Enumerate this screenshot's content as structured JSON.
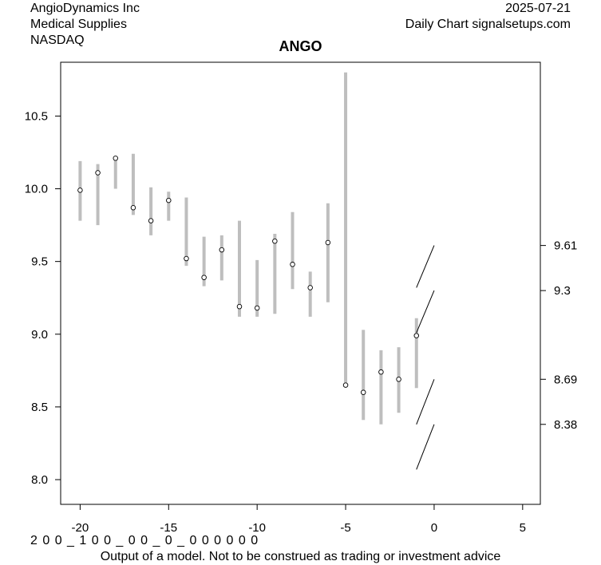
{
  "header": {
    "company": "AngioDynamics Inc",
    "sector": "Medical Supplies",
    "exchange": "NASDAQ",
    "date": "2025-07-21",
    "source": "Daily Chart signalsetups.com"
  },
  "footer": {
    "code": "2 0 0 _ 1 0 0 _ 0 0 _ 0 _ 0 0 0 0 0 0",
    "disclaimer": "Output of a model. Not to be construed as trading or investment advice"
  },
  "chart_data": {
    "type": "range",
    "title": "ANGO",
    "xlim": [
      -21.1,
      6.0
    ],
    "ylim": [
      7.83,
      10.87
    ],
    "x_ticks": [
      -20,
      -15,
      -10,
      -5,
      0,
      5
    ],
    "y_ticks": [
      8.0,
      8.5,
      9.0,
      9.5,
      10.0,
      10.5
    ],
    "y_tick_labels": [
      "8.0",
      "8.5",
      "9.0",
      "9.5",
      "10.0",
      "10.5"
    ],
    "bar_color": "#bebebe",
    "bars": [
      {
        "x": -20,
        "low": 9.78,
        "high": 10.19,
        "close": 9.99
      },
      {
        "x": -19,
        "low": 9.75,
        "high": 10.17,
        "close": 10.11
      },
      {
        "x": -18,
        "low": 10.0,
        "high": 10.22,
        "close": 10.21
      },
      {
        "x": -17,
        "low": 9.82,
        "high": 10.24,
        "close": 9.87
      },
      {
        "x": -16,
        "low": 9.68,
        "high": 10.01,
        "close": 9.78
      },
      {
        "x": -15,
        "low": 9.78,
        "high": 9.98,
        "close": 9.92
      },
      {
        "x": -14,
        "low": 9.47,
        "high": 9.94,
        "close": 9.52
      },
      {
        "x": -13,
        "low": 9.33,
        "high": 9.67,
        "close": 9.39
      },
      {
        "x": -12,
        "low": 9.37,
        "high": 9.68,
        "close": 9.58
      },
      {
        "x": -11,
        "low": 9.12,
        "high": 9.78,
        "close": 9.19
      },
      {
        "x": -10,
        "low": 9.12,
        "high": 9.51,
        "close": 9.18
      },
      {
        "x": -9,
        "low": 9.14,
        "high": 9.69,
        "close": 9.64
      },
      {
        "x": -8,
        "low": 9.31,
        "high": 9.84,
        "close": 9.48
      },
      {
        "x": -7,
        "low": 9.12,
        "high": 9.43,
        "close": 9.32
      },
      {
        "x": -6,
        "low": 9.22,
        "high": 9.9,
        "close": 9.63
      },
      {
        "x": -5,
        "low": 8.64,
        "high": 10.8,
        "close": 8.65
      },
      {
        "x": -4,
        "low": 8.41,
        "high": 9.03,
        "close": 8.6
      },
      {
        "x": -3,
        "low": 8.38,
        "high": 8.89,
        "close": 8.74
      },
      {
        "x": -2,
        "low": 8.46,
        "high": 8.91,
        "close": 8.69
      },
      {
        "x": -1,
        "low": 8.63,
        "high": 9.11,
        "close": 8.99
      }
    ],
    "projection_lines": [
      {
        "x1": -1,
        "y1": 9.32,
        "x2": 0,
        "y2": 9.61
      },
      {
        "x1": -1,
        "y1": 9.01,
        "x2": 0,
        "y2": 9.3
      },
      {
        "x1": -1,
        "y1": 8.38,
        "x2": 0,
        "y2": 8.69
      },
      {
        "x1": -1,
        "y1": 8.07,
        "x2": 0,
        "y2": 8.38
      }
    ],
    "right_labels": [
      {
        "value": 9.61,
        "label": "9.61"
      },
      {
        "value": 9.3,
        "label": "9.3"
      },
      {
        "value": 8.69,
        "label": "8.69"
      },
      {
        "value": 8.38,
        "label": "8.38"
      }
    ]
  }
}
